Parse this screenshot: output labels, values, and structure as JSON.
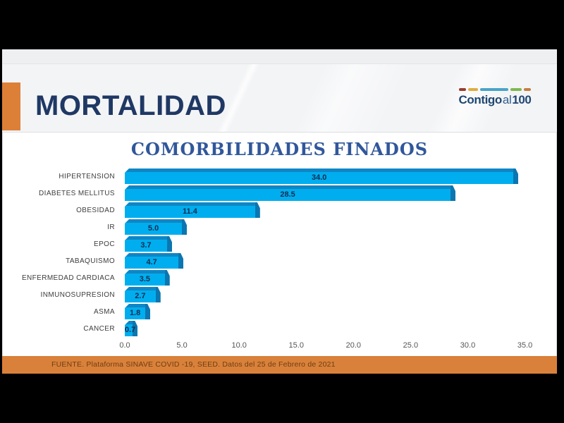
{
  "header": {
    "title": "MORTALIDAD",
    "accent_color": "#DC8038"
  },
  "logo": {
    "contigo": "Contigo",
    "al": "al",
    "hundred": "100",
    "dash_colors": [
      "#9A3B30",
      "#E0AC3E",
      "#4AA3C8",
      "#7FB850",
      "#C57E3F"
    ]
  },
  "chart_data": {
    "type": "bar",
    "orientation": "horizontal",
    "title": "COMORBILIDADES FINADOS",
    "categories": [
      "HIPERTENSION",
      "DIABETES MELLITUS",
      "OBESIDAD",
      "IR",
      "EPOC",
      "TABAQUISMO",
      "ENFERMEDAD CARDIACA",
      "INMUNOSUPRESION",
      "ASMA",
      "CANCER"
    ],
    "values": [
      34.0,
      28.5,
      11.4,
      5.0,
      3.7,
      4.7,
      3.5,
      2.7,
      1.8,
      0.7
    ],
    "value_labels": [
      "34.0",
      "28.5",
      "11.4",
      "5.0",
      "3.7",
      "4.7",
      "3.5",
      "2.7",
      "1.8",
      "0.7"
    ],
    "x_ticks": [
      0,
      5,
      10,
      15,
      20,
      25,
      30,
      35
    ],
    "x_tick_labels": [
      "0.0",
      "5.0",
      "10.0",
      "15.0",
      "20.0",
      "25.0",
      "30.0",
      "35.0"
    ],
    "xlim": [
      0,
      37
    ],
    "grid": false,
    "legend": "none",
    "bar_color": "#00AEEF",
    "bar_top_color": "#0F86C5",
    "bar_side_color": "#0B76B0",
    "value_label_color": "#0F2D52"
  },
  "footer": {
    "source": "FUENTE. Plataforma SINAVE COVID -19, SEED. Datos del 25 de Febrero de 2021",
    "band_color": "#D9813A"
  }
}
